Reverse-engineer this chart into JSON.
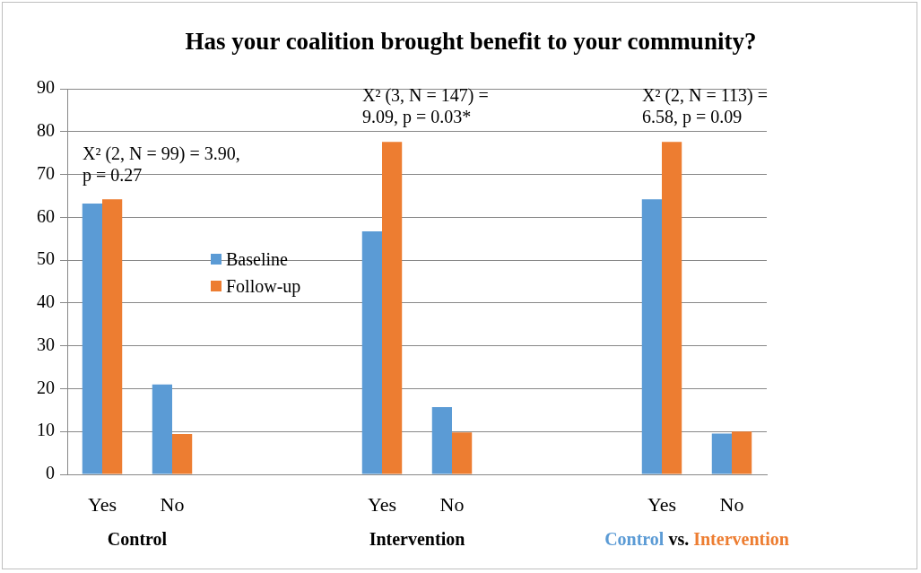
{
  "chart_data": {
    "type": "bar",
    "title": "Has your coalition brought benefit to your community?",
    "categories": [
      "Yes",
      "No",
      null,
      null,
      "Yes",
      "No",
      null,
      null,
      "Yes",
      "No"
    ],
    "series": [
      {
        "name": "Baseline",
        "color": "#5b9bd5",
        "values": [
          63.2,
          21,
          null,
          null,
          56.7,
          15.7,
          null,
          null,
          64.2,
          9.5
        ]
      },
      {
        "name": "Follow-up",
        "color": "#ed7d31",
        "values": [
          64.2,
          9.4,
          null,
          null,
          77.6,
          9.8,
          null,
          null,
          77.6,
          10
        ]
      }
    ],
    "ylim": [
      0,
      90
    ],
    "yticks": [
      0,
      10,
      20,
      30,
      40,
      50,
      60,
      70,
      80,
      90
    ],
    "grid": "y",
    "legend": "left",
    "annotations": [
      "X² (2, N = 99) = 3.90, p = 0.27",
      "X² (3, N = 147) = 9.09, p = 0.03*",
      "X² (2, N = 113) = 6.58, p = 0.09",
      "Control",
      "Intervention",
      "Control vs. Intervention"
    ]
  }
}
